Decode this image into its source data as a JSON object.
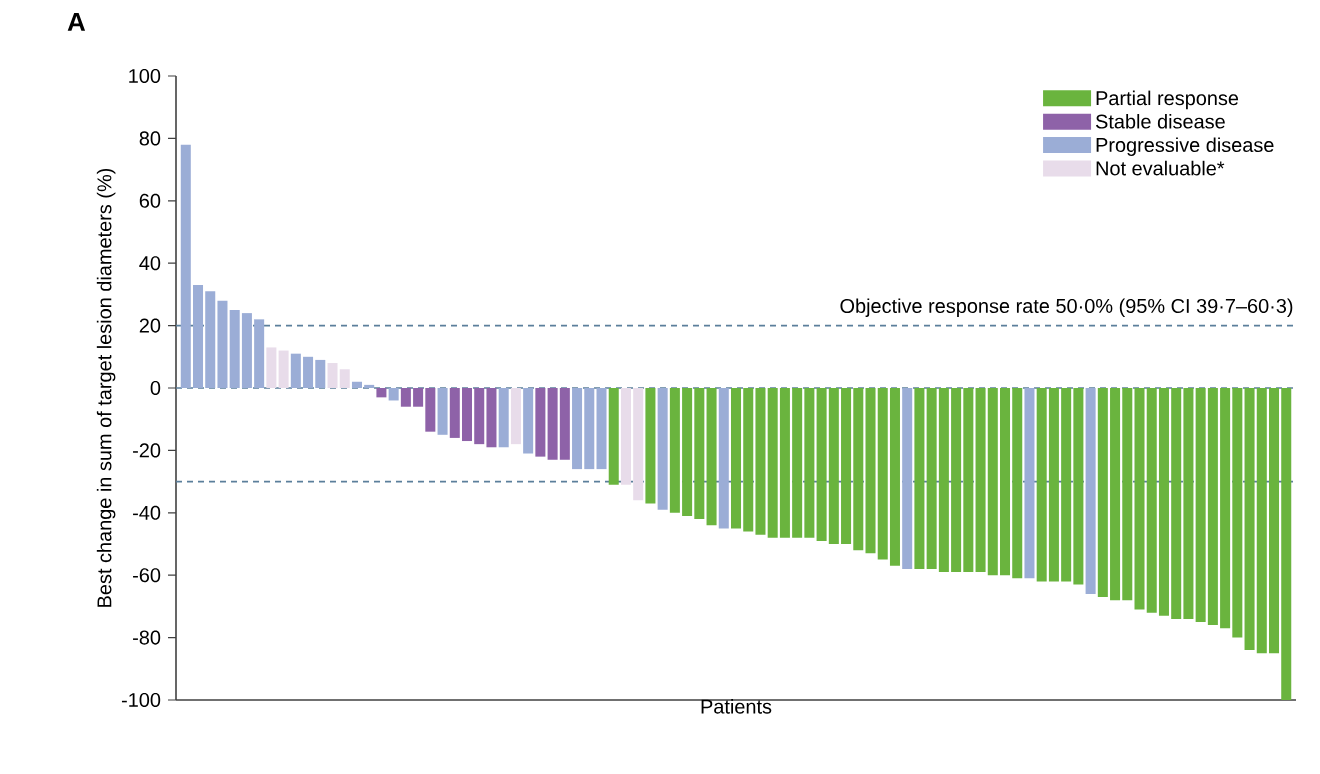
{
  "chart_data": {
    "type": "bar",
    "title": "A",
    "ylabel": "Best change in sum of target lesion diameters (%)",
    "xlabel": "Patients",
    "annotations": [
      "Objective response rate 50·0% (95% CI 39·7–60·3)"
    ],
    "categories": [
      null,
      null,
      null,
      null,
      null,
      null,
      null,
      null,
      null,
      null,
      null,
      null,
      null,
      null,
      null,
      null,
      null,
      null,
      null,
      null,
      null,
      null,
      null,
      null,
      null,
      null,
      null,
      null,
      null,
      null,
      null,
      null,
      null,
      null,
      null,
      null,
      null,
      null,
      null,
      null,
      null,
      null,
      null,
      null,
      null,
      null,
      null,
      null,
      null,
      null,
      null,
      null,
      null,
      null,
      null,
      null,
      null,
      null,
      null,
      null,
      null,
      null,
      null,
      null,
      null,
      null,
      null,
      null,
      null,
      null,
      null,
      null,
      null,
      null,
      null,
      null,
      null,
      null,
      null,
      null,
      null,
      null,
      null,
      null,
      null,
      null,
      null,
      null,
      null,
      null,
      null
    ],
    "series": [
      {
        "name": "Partial response",
        "color": "#6ab43e",
        "values": [
          null,
          null,
          null,
          null,
          null,
          null,
          null,
          null,
          null,
          null,
          null,
          null,
          null,
          null,
          null,
          null,
          null,
          null,
          null,
          null,
          null,
          null,
          null,
          null,
          null,
          null,
          null,
          null,
          null,
          null,
          null,
          null,
          null,
          null,
          null,
          -31,
          null,
          null,
          -37,
          null,
          -40,
          -41,
          -42,
          -44,
          null,
          -45,
          -46,
          -47,
          -48,
          -48,
          -48,
          -48,
          -49,
          -50,
          -50,
          -52,
          -53,
          -55,
          -57,
          null,
          -58,
          -58,
          -59,
          -59,
          -59,
          -59,
          -60,
          -60,
          -61,
          null,
          -62,
          -62,
          -62,
          -63,
          null,
          -67,
          -68,
          -68,
          -71,
          -72,
          -73,
          -74,
          -74,
          -75,
          -76,
          -77,
          -80,
          -84,
          -85,
          -85,
          -100
        ]
      },
      {
        "name": "Stable disease",
        "color": "#8e62a8",
        "values": [
          null,
          null,
          null,
          null,
          null,
          null,
          null,
          null,
          null,
          null,
          null,
          null,
          null,
          null,
          null,
          null,
          -3,
          null,
          -6,
          -6,
          -14,
          null,
          -16,
          -17,
          -18,
          -19,
          null,
          null,
          null,
          -22,
          -23,
          -23,
          null,
          null,
          null,
          null,
          null,
          null,
          null,
          null,
          null,
          null,
          null,
          null,
          null,
          null,
          null,
          null,
          null,
          null,
          null,
          null,
          null,
          null,
          null,
          null,
          null,
          null,
          null,
          null,
          null,
          null,
          null,
          null,
          null,
          null,
          null,
          null,
          null,
          null,
          null,
          null,
          null,
          null,
          null,
          null,
          null,
          null,
          null,
          null,
          null,
          null,
          null,
          null,
          null,
          null,
          null,
          null,
          null,
          null,
          null
        ]
      },
      {
        "name": "Progressive disease",
        "color": "#9badd6",
        "values": [
          78,
          33,
          31,
          28,
          25,
          24,
          22,
          null,
          null,
          11,
          10,
          9,
          null,
          null,
          2,
          1,
          null,
          -4,
          null,
          null,
          null,
          -15,
          null,
          null,
          null,
          null,
          -19,
          null,
          -21,
          null,
          null,
          null,
          -26,
          -26,
          -26,
          null,
          null,
          null,
          null,
          -39,
          null,
          null,
          null,
          null,
          -45,
          null,
          null,
          null,
          null,
          null,
          null,
          null,
          null,
          null,
          null,
          null,
          null,
          null,
          null,
          -58,
          null,
          null,
          null,
          null,
          null,
          null,
          null,
          null,
          null,
          -61,
          null,
          null,
          null,
          null,
          -66,
          null,
          null,
          null,
          null,
          null,
          null,
          null,
          null,
          null,
          null,
          null,
          null,
          null,
          null,
          null,
          null
        ]
      },
      {
        "name": "Not evaluable*",
        "color": "#e8dcea",
        "values": [
          null,
          null,
          null,
          null,
          null,
          null,
          null,
          13,
          12,
          null,
          null,
          null,
          8,
          6,
          null,
          null,
          null,
          null,
          null,
          null,
          null,
          null,
          null,
          null,
          null,
          null,
          null,
          -18,
          null,
          null,
          null,
          null,
          null,
          null,
          null,
          null,
          -31,
          -36,
          null,
          null,
          null,
          null,
          null,
          null,
          null,
          null,
          null,
          null,
          null,
          null,
          null,
          null,
          null,
          null,
          null,
          null,
          null,
          null,
          null,
          null,
          null,
          null,
          null,
          null,
          null,
          null,
          null,
          null,
          null,
          null,
          null,
          null,
          null,
          null,
          null,
          null,
          null,
          null,
          null,
          null,
          null,
          null,
          null,
          null,
          null,
          null,
          null,
          null,
          null,
          null,
          null
        ]
      }
    ],
    "ylim": [
      -100,
      100
    ],
    "yticks": [
      -100,
      -80,
      -60,
      -40,
      -20,
      0,
      20,
      40,
      60,
      80,
      100
    ],
    "ref_lines": [
      {
        "axis": "y",
        "value": 20,
        "color": "#5b7f9b",
        "line_style": "dashed"
      },
      {
        "axis": "y",
        "value": 0,
        "color": "#5b7f9b",
        "line_style": "dashed"
      },
      {
        "axis": "y",
        "value": -30,
        "color": "#5b7f9b",
        "line_style": "dashed"
      }
    ],
    "legend": "top right",
    "grid": false,
    "tick_labels": "y"
  }
}
